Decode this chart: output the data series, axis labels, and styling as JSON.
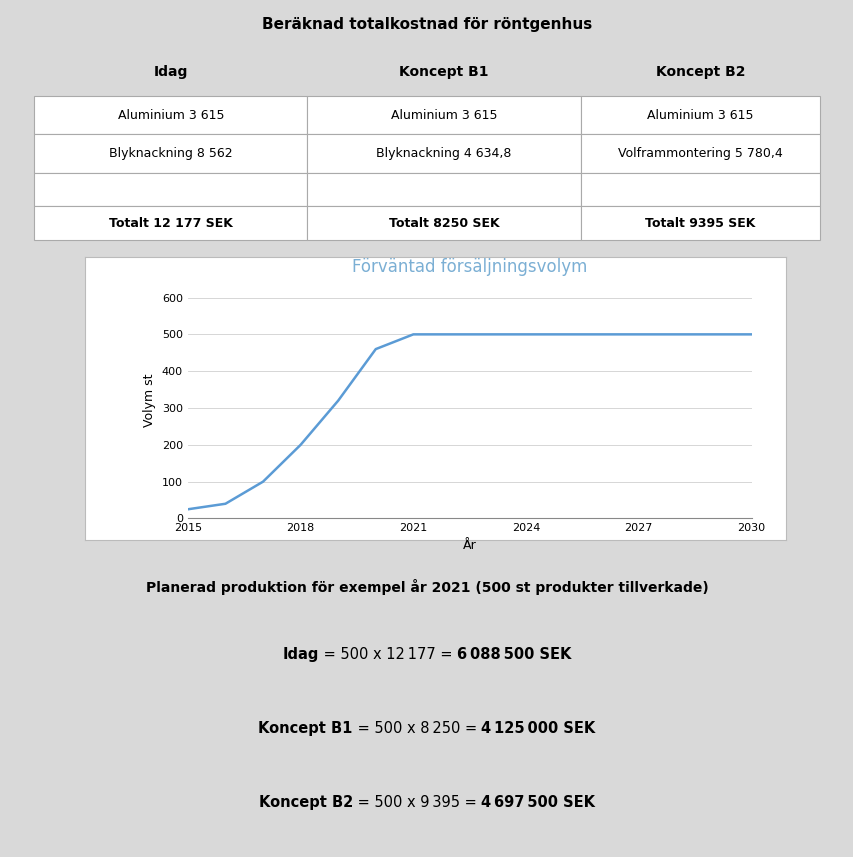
{
  "background_color": "#d9d9d9",
  "table_title": "Beräknad totalkostnad för röntgenhus",
  "table_headers": [
    "Idag",
    "Koncept B1",
    "Koncept B2"
  ],
  "table_row1": [
    "Aluminium 3 615",
    "Aluminium 3 615",
    "Aluminium 3 615"
  ],
  "table_row2": [
    "Blyknackning 8 562",
    "Blyknackning 4 634,8",
    "Volframmontering 5 780,4"
  ],
  "table_row3": [
    "",
    "",
    ""
  ],
  "table_row4": [
    "Totalt 12 177 SEK",
    "Totalt 8250 SEK",
    "Totalt 9395 SEK"
  ],
  "chart_title": "Förväntad försäljningsvolym",
  "chart_bg": "#ffffff",
  "chart_line_color": "#5b9bd5",
  "xlabel": "År",
  "ylabel": "Volym st",
  "x_data": [
    2015,
    2016,
    2017,
    2018,
    2019,
    2020,
    2021,
    2022,
    2023,
    2024,
    2025,
    2026,
    2027,
    2028,
    2029,
    2030
  ],
  "y_data": [
    25,
    40,
    100,
    200,
    320,
    460,
    500,
    500,
    500,
    500,
    500,
    500,
    500,
    500,
    500,
    500
  ],
  "xlim": [
    2015,
    2030
  ],
  "ylim": [
    0,
    640
  ],
  "xticks": [
    2015,
    2018,
    2021,
    2024,
    2027,
    2030
  ],
  "yticks": [
    0,
    100,
    200,
    300,
    400,
    500,
    600
  ],
  "caption": "Planerad produktion för exempel år 2021 (500 st produkter tillverkade)",
  "line1_bold": "Idag",
  "line1_normal": " = 500 x 12 177 = ",
  "line1_result": "6 088 500 SEK",
  "line2_bold": "Koncept B1",
  "line2_normal": " = 500 x 8 250 = ",
  "line2_result": "4 125 000 SEK",
  "line3_bold": "Koncept B2",
  "line3_normal": " = 500 x 9 395 = ",
  "line3_result": "4 697 500 SEK"
}
